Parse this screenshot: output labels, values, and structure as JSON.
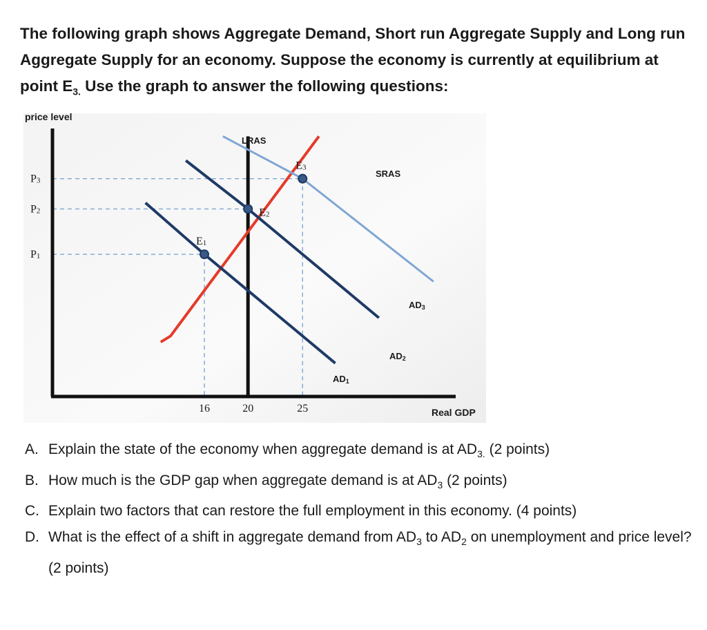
{
  "intro": {
    "line1": "The following graph shows Aggregate Demand,  Short run Aggregate Supply and Long run Aggregate Supply for an economy. Suppose the economy is currently at equilibrium at point E",
    "sub": "3.",
    "line2": " Use the graph to answer the following questions:"
  },
  "chart_data": {
    "type": "line",
    "ylabel": "price level",
    "xlabel": "Real GDP",
    "x_ticks": [
      "16",
      "20",
      "25"
    ],
    "y_ticks": [
      "P3",
      "P2",
      "P1"
    ],
    "series": [
      {
        "name": "LRAS",
        "color": "#111111",
        "points": [
          [
            20,
            0
          ],
          [
            20,
            4.3
          ]
        ]
      },
      {
        "name": "SRAS",
        "color": "#e53a2a",
        "points": [
          [
            12,
            0.9
          ],
          [
            12.9,
            1.0
          ],
          [
            26.5,
            4.3
          ]
        ]
      },
      {
        "name": "AD1",
        "color": "#1f3a66",
        "points": [
          [
            10.6,
            3.2
          ],
          [
            16,
            2.35
          ],
          [
            28,
            0.55
          ]
        ]
      },
      {
        "name": "AD2",
        "color": "#1f3a66",
        "points": [
          [
            14.3,
            3.9
          ],
          [
            20,
            3.1
          ],
          [
            32,
            1.3
          ]
        ]
      },
      {
        "name": "AD3",
        "color": "#7fa6d4",
        "points": [
          [
            17.7,
            4.3
          ],
          [
            25,
            3.6
          ],
          [
            37,
            1.9
          ]
        ]
      }
    ],
    "equilibria": [
      {
        "label": "E1",
        "x": 16,
        "y": 2.35
      },
      {
        "label": "E2",
        "x": 20,
        "y": 3.1
      },
      {
        "label": "E3",
        "x": 25,
        "y": 3.6
      }
    ],
    "series_labels": {
      "LRAS": "LRAS",
      "SRAS": "SRAS",
      "AD1": "AD",
      "AD2": "AD",
      "AD3": "AD"
    },
    "series_label_subs": {
      "AD1": "1",
      "AD2": "2",
      "AD3": "3"
    }
  },
  "questions": [
    {
      "letter": "A.",
      "pre": "Explain the state of the economy when aggregate demand is at AD",
      "sub": "3.",
      "post": " (2 points)"
    },
    {
      "letter": "B.",
      "pre": "How much is the GDP gap when aggregate demand is at AD",
      "sub": "3",
      "post": " (2 points)"
    },
    {
      "letter": "C.",
      "pre": "Explain two factors that can restore the full employment in this economy. (4 points)",
      "sub": "",
      "post": ""
    },
    {
      "letter": "D.",
      "pre": "What is the effect of a shift in aggregate demand from AD",
      "sub": "3",
      "mid": " to AD",
      "sub2": "2",
      "post": " on unemployment and price level? (2 points)"
    }
  ]
}
